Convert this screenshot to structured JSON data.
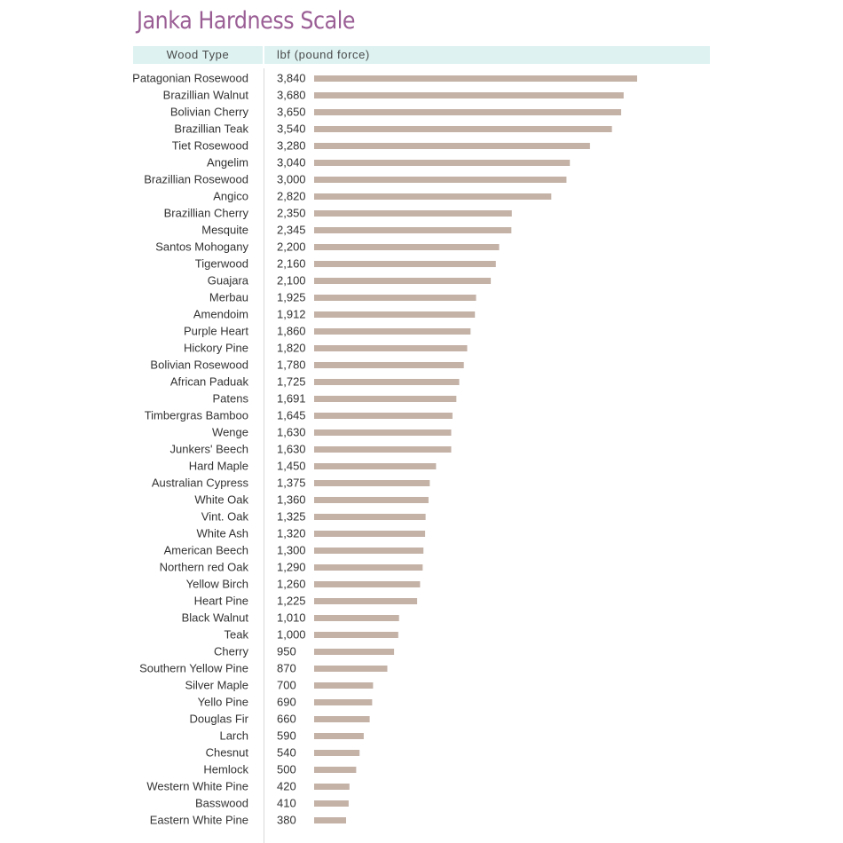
{
  "chart_data": {
    "type": "bar",
    "orientation": "horizontal",
    "title": "Janka Hardness Scale",
    "column_headers": [
      "Wood Type",
      "lbf (pound force)"
    ],
    "categories": [
      "Patagonian Rosewood",
      "Brazillian Walnut",
      "Bolivian Cherry",
      "Brazillian Teak",
      "Tiet Rosewood",
      "Angelim",
      "Brazillian Rosewood",
      "Angico",
      "Brazillian Cherry",
      "Mesquite",
      "Santos Mohogany",
      "Tigerwood",
      "Guajara",
      "Merbau",
      "Amendoim",
      "Purple Heart",
      "Hickory Pine",
      "Bolivian Rosewood",
      "African Paduak",
      "Patens",
      "Timbergras Bamboo",
      "Wenge",
      "Junkers' Beech",
      "Hard Maple",
      "Australian Cypress",
      "White Oak",
      "Vint. Oak",
      "White Ash",
      "American Beech",
      "Northern red Oak",
      "Yellow Birch",
      "Heart Pine",
      "Black Walnut",
      "Teak",
      "Cherry",
      "Southern Yellow Pine",
      "Silver Maple",
      "Yello Pine",
      "Douglas Fir",
      "Larch",
      "Chesnut",
      "Hemlock",
      "Western White Pine",
      "Basswood",
      "Eastern White Pine"
    ],
    "values": [
      3840,
      3680,
      3650,
      3540,
      3280,
      3040,
      3000,
      2820,
      2350,
      2345,
      2200,
      2160,
      2100,
      1925,
      1912,
      1860,
      1820,
      1780,
      1725,
      1691,
      1645,
      1630,
      1630,
      1450,
      1375,
      1360,
      1325,
      1320,
      1300,
      1290,
      1260,
      1225,
      1010,
      1000,
      950,
      870,
      700,
      690,
      660,
      590,
      540,
      500,
      420,
      410,
      380
    ],
    "value_labels": [
      "3,840",
      "3,680",
      "3,650",
      "3,540",
      "3,280",
      "3,040",
      "3,000",
      "2,820",
      "2,350",
      "2,345",
      "2,200",
      "2,160",
      "2,100",
      "1,925",
      "1,912",
      "1,860",
      "1,820",
      "1,780",
      "1,725",
      "1,691",
      "1,645",
      "1,630",
      "1,630",
      "1,450",
      "1,375",
      "1,360",
      "1,325",
      "1,320",
      "1,300",
      "1,290",
      "1,260",
      "1,225",
      "1,010",
      "1,000",
      "950",
      "870",
      "700",
      "690",
      "660",
      "590",
      "540",
      "500",
      "420",
      "410",
      "380"
    ],
    "xlim": [
      0,
      3840
    ],
    "grid": false,
    "legend": "none",
    "colors": {
      "bar": "#c4b2a7",
      "title": "#9a5e95",
      "header_background": "#ddf2f1"
    }
  }
}
